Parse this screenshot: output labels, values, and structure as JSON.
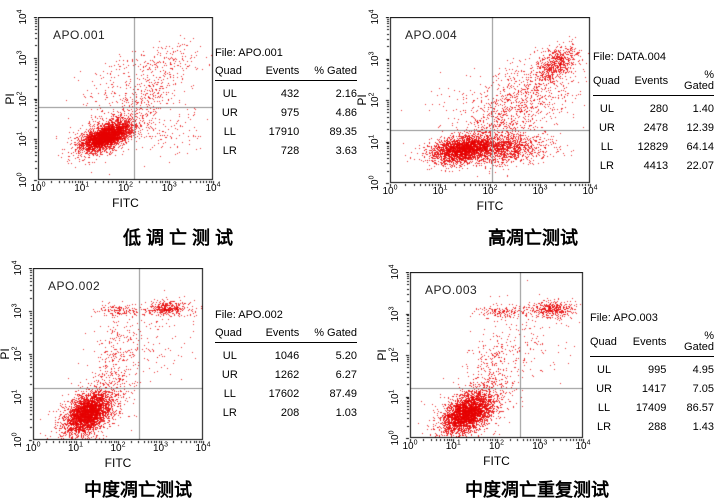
{
  "colors": {
    "dot": "#e60000",
    "quadrant_line": "#8f8f8f",
    "frame": "#000000",
    "text": "#000000",
    "background": "#ffffff"
  },
  "cluster_fields": [
    "count",
    "x_mean_log10",
    "y_mean_log10",
    "x_sd",
    "y_sd",
    "correlation"
  ],
  "chart_data": [
    {
      "type": "scatter",
      "plot_label": "APO.001",
      "file_label": "File: APO.001",
      "caption": "低 调 亡 测 试",
      "xlabel": "FITC",
      "ylabel": "PI",
      "x_axis": {
        "scale": "log10",
        "range_log10": [
          0,
          4
        ],
        "tick_labels": [
          "10^0",
          "10^1",
          "10^2",
          "10^3",
          "10^4"
        ]
      },
      "y_axis": {
        "scale": "log10",
        "range_log10": [
          0,
          4
        ],
        "tick_labels": [
          "10^0",
          "10^1",
          "10^2",
          "10^3",
          "10^4"
        ]
      },
      "quadrant_lines": {
        "x_log10": 2.2,
        "y_log10": 1.8
      },
      "stats": {
        "headers": [
          "Quad",
          "Events",
          "% Gated"
        ],
        "rows": [
          [
            "UL",
            "432",
            "2.16"
          ],
          [
            "UR",
            "975",
            "4.86"
          ],
          [
            "LL",
            "17910",
            "89.35"
          ],
          [
            "LR",
            "728",
            "3.63"
          ]
        ]
      },
      "clusters": [
        [
          3000,
          1.55,
          1.08,
          0.27,
          0.17,
          0.6
        ],
        [
          700,
          1.6,
          1.12,
          0.45,
          0.3,
          0.55
        ],
        [
          380,
          2.45,
          2.05,
          0.52,
          0.5,
          0.6
        ],
        [
          140,
          2.9,
          2.95,
          0.42,
          0.22,
          0.3
        ],
        [
          90,
          1.75,
          2.35,
          0.4,
          0.4,
          0.2
        ],
        [
          120,
          2.9,
          1.15,
          0.42,
          0.35,
          0.1
        ]
      ]
    },
    {
      "type": "scatter",
      "plot_label": "APO.004",
      "file_label": "File: DATA.004",
      "caption": "高凋亡测试",
      "xlabel": "FITC",
      "ylabel": "PI",
      "x_axis": {
        "scale": "log10",
        "range_log10": [
          0,
          4
        ],
        "tick_labels": [
          "10^0",
          "10^1",
          "10^2",
          "10^3",
          "10^4"
        ]
      },
      "y_axis": {
        "scale": "log10",
        "range_log10": [
          0,
          4
        ],
        "tick_labels": [
          "10^0",
          "10^1",
          "10^2",
          "10^3",
          "10^4"
        ]
      },
      "quadrant_lines": {
        "x_log10": 2.05,
        "y_log10": 1.27
      },
      "stats": {
        "headers": [
          "Quad",
          "Events",
          "% Gated"
        ],
        "rows": [
          [
            "UL",
            "280",
            "1.40"
          ],
          [
            "UR",
            "2478",
            "12.39"
          ],
          [
            "LL",
            "12829",
            "64.14"
          ],
          [
            "LR",
            "4413",
            "22.07"
          ]
        ]
      },
      "clusters": [
        [
          2400,
          1.42,
          0.82,
          0.3,
          0.17,
          0.35
        ],
        [
          1500,
          2.15,
          0.85,
          0.5,
          0.19,
          0.05
        ],
        [
          750,
          2.75,
          2.05,
          0.52,
          0.55,
          0.45
        ],
        [
          600,
          3.32,
          2.9,
          0.2,
          0.22,
          0.45
        ],
        [
          300,
          2.15,
          1.55,
          0.4,
          0.45,
          0.45
        ],
        [
          80,
          1.55,
          1.95,
          0.45,
          0.4,
          0.2
        ]
      ]
    },
    {
      "type": "scatter",
      "plot_label": "APO.002",
      "file_label": "File: APO.002",
      "caption": "中度凋亡测试",
      "xlabel": "FITC",
      "ylabel": "PI",
      "x_axis": {
        "scale": "log10",
        "range_log10": [
          0,
          4
        ],
        "tick_labels": [
          "10^0",
          "10^1",
          "10^2",
          "10^3",
          "10^4"
        ]
      },
      "y_axis": {
        "scale": "log10",
        "range_log10": [
          0,
          4
        ],
        "tick_labels": [
          "10^0",
          "10^1",
          "10^2",
          "10^3",
          "10^4"
        ]
      },
      "quadrant_lines": {
        "x_log10": 2.5,
        "y_log10": 1.22
      },
      "stats": {
        "headers": [
          "Quad",
          "Events",
          "% Gated"
        ],
        "rows": [
          [
            "UL",
            "1046",
            "5.20"
          ],
          [
            "UR",
            "1262",
            "6.27"
          ],
          [
            "LL",
            "17602",
            "87.49"
          ],
          [
            "LR",
            "208",
            "1.03"
          ]
        ]
      },
      "clusters": [
        [
          3000,
          1.28,
          0.62,
          0.26,
          0.24,
          0.45
        ],
        [
          650,
          1.38,
          0.72,
          0.42,
          0.36,
          0.45
        ],
        [
          260,
          1.85,
          1.75,
          0.28,
          0.55,
          0.3
        ],
        [
          150,
          2.05,
          3.02,
          0.3,
          0.07,
          0
        ],
        [
          380,
          3.15,
          3.07,
          0.27,
          0.09,
          0.1
        ],
        [
          160,
          2.55,
          2.2,
          0.55,
          0.5,
          0.2
        ]
      ]
    },
    {
      "type": "scatter",
      "plot_label": "APO.003",
      "file_label": "File: APO.003",
      "caption": "中度凋亡重复测试",
      "xlabel": "FITC",
      "ylabel": "PI",
      "x_axis": {
        "scale": "log10",
        "range_log10": [
          0,
          4
        ],
        "tick_labels": [
          "10^0",
          "10^1",
          "10^2",
          "10^3",
          "10^4"
        ]
      },
      "y_axis": {
        "scale": "log10",
        "range_log10": [
          0,
          4
        ],
        "tick_labels": [
          "10^0",
          "10^1",
          "10^2",
          "10^3",
          "10^4"
        ]
      },
      "quadrant_lines": {
        "x_log10": 2.55,
        "y_log10": 1.2
      },
      "stats": {
        "headers": [
          "Quad",
          "Events",
          "% Gated"
        ],
        "rows": [
          [
            "UL",
            "995",
            "4.95"
          ],
          [
            "UR",
            "1417",
            "7.05"
          ],
          [
            "LL",
            "17409",
            "86.57"
          ],
          [
            "LR",
            "288",
            "1.43"
          ]
        ]
      },
      "clusters": [
        [
          3000,
          1.32,
          0.6,
          0.27,
          0.24,
          0.45
        ],
        [
          650,
          1.42,
          0.7,
          0.43,
          0.36,
          0.45
        ],
        [
          260,
          1.92,
          1.72,
          0.3,
          0.55,
          0.3
        ],
        [
          170,
          2.15,
          3.05,
          0.32,
          0.08,
          0
        ],
        [
          420,
          3.3,
          3.1,
          0.24,
          0.1,
          0.1
        ],
        [
          160,
          2.65,
          2.3,
          0.5,
          0.5,
          0.2
        ]
      ]
    }
  ]
}
